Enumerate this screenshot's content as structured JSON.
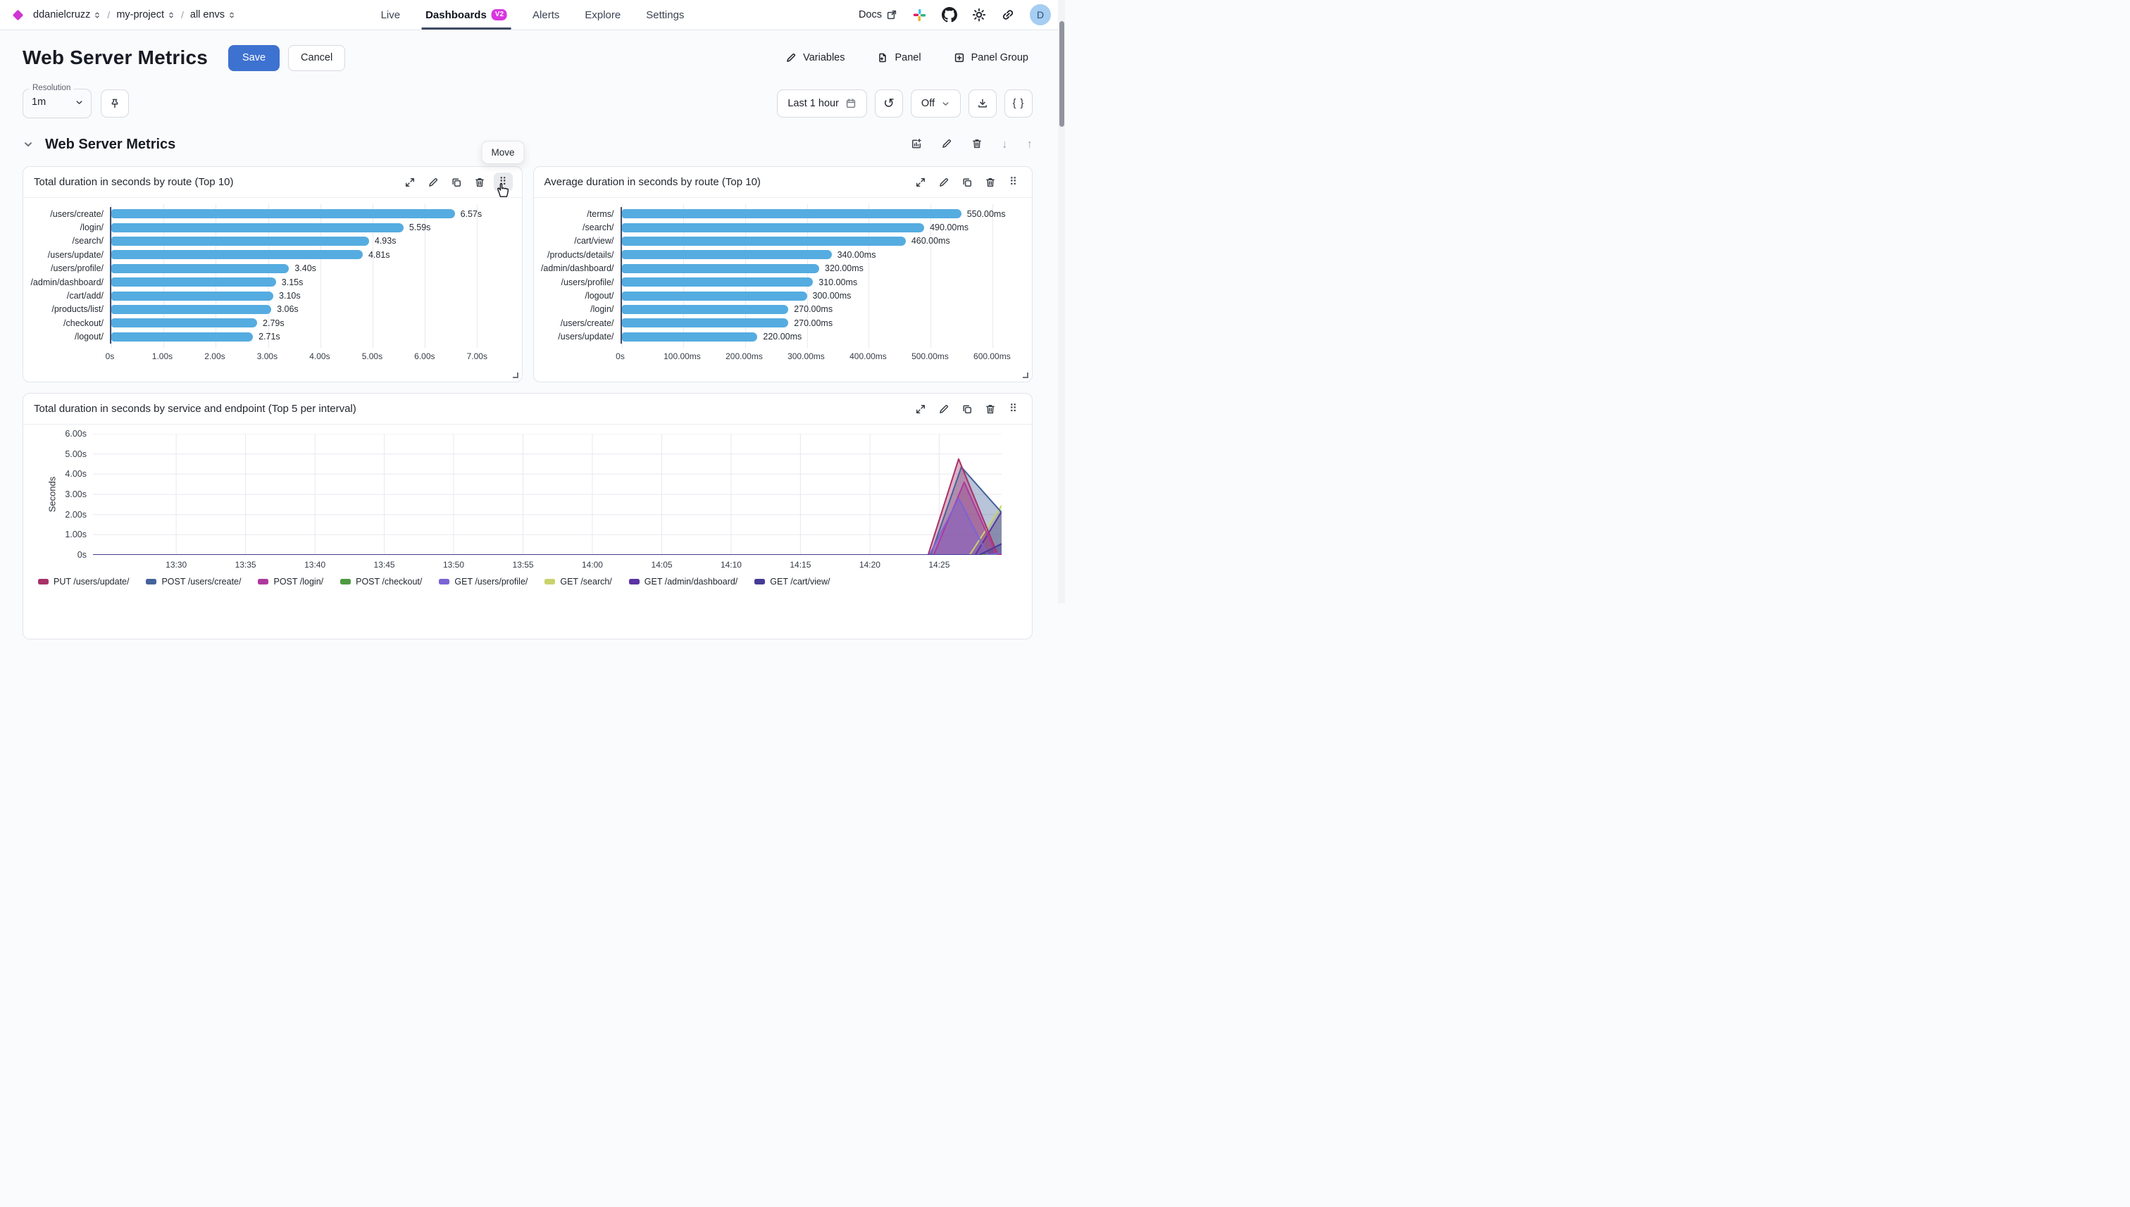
{
  "nav": {
    "logo_color": "#cf35d3",
    "crumbs": [
      "ddanielcruzz",
      "my-project",
      "all envs"
    ],
    "tabs": [
      {
        "label": "Live",
        "active": false
      },
      {
        "label": "Dashboards",
        "badge": "V2",
        "active": true
      },
      {
        "label": "Alerts",
        "active": false
      },
      {
        "label": "Explore",
        "active": false
      },
      {
        "label": "Settings",
        "active": false
      }
    ],
    "badge_color": "#d935e0",
    "docs_label": "Docs",
    "avatar_initial": "D"
  },
  "header": {
    "title": "Web Server Metrics",
    "save_label": "Save",
    "cancel_label": "Cancel",
    "actions": [
      {
        "label": "Variables",
        "icon": "edit-icon"
      },
      {
        "label": "Panel",
        "icon": "file-plus-icon"
      },
      {
        "label": "Panel Group",
        "icon": "square-plus-icon"
      }
    ]
  },
  "controls": {
    "resolution_label": "Resolution",
    "resolution_value": "1m",
    "time_range": "Last 1 hour",
    "autorefresh": "Off",
    "braces_label": "{ }"
  },
  "section": {
    "title": "Web Server Metrics",
    "move_tooltip": "Move"
  },
  "icon_glyphs": {
    "drag-handle": "⠿",
    "refresh": "↺",
    "arrow-down": "↓",
    "arrow-up": "↑"
  },
  "colors": {
    "accent_blue": "#3e72d0",
    "bar_blue": "#55ace0",
    "axis_dark": "#434e6b",
    "grid": "#e9e9f1"
  },
  "chart_data": [
    {
      "type": "bar",
      "orientation": "horizontal",
      "title": "Total duration in seconds by route (Top 10)",
      "categories": [
        "/users/create/",
        "/login/",
        "/search/",
        "/users/update/",
        "/users/profile/",
        "/admin/dashboard/",
        "/cart/add/",
        "/products/list/",
        "/checkout/",
        "/logout/"
      ],
      "values": [
        6.57,
        5.59,
        4.93,
        4.81,
        3.4,
        3.15,
        3.1,
        3.06,
        2.79,
        2.71
      ],
      "value_labels": [
        "6.57s",
        "5.59s",
        "4.93s",
        "4.81s",
        "3.40s",
        "3.15s",
        "3.10s",
        "3.06s",
        "2.79s",
        "2.71s"
      ],
      "axis_max": 7.62,
      "ticks": {
        "values": [
          0,
          1,
          2,
          3,
          4,
          5,
          6,
          7
        ],
        "labels": [
          "0s",
          "1.00s",
          "2.00s",
          "3.00s",
          "4.00s",
          "5.00s",
          "6.00s",
          "7.00s"
        ]
      },
      "bar_color": "#55ace0",
      "grid": true
    },
    {
      "type": "bar",
      "orientation": "horizontal",
      "title": "Average duration in seconds by route (Top 10)",
      "categories": [
        "/terms/",
        "/search/",
        "/cart/view/",
        "/products/details/",
        "/admin/dashboard/",
        "/users/profile/",
        "/logout/",
        "/login/",
        "/users/create/",
        "/users/update/"
      ],
      "values": [
        550,
        490,
        460,
        340,
        320,
        310,
        300,
        270,
        270,
        220
      ],
      "value_labels": [
        "550.00ms",
        "490.00ms",
        "460.00ms",
        "340.00ms",
        "320.00ms",
        "310.00ms",
        "300.00ms",
        "270.00ms",
        "270.00ms",
        "220.00ms"
      ],
      "axis_max": 645,
      "ticks": {
        "values": [
          0,
          100,
          200,
          300,
          400,
          500,
          600
        ],
        "labels": [
          "0s",
          "100.00ms",
          "200.00ms",
          "300.00ms",
          "400.00ms",
          "500.00ms",
          "600.00ms"
        ]
      },
      "bar_color": "#55ace0",
      "grid": true
    },
    {
      "type": "area",
      "title": "Total duration in seconds by service and endpoint (Top 5 per interval)",
      "ylabel": "Seconds",
      "ylim": [
        0,
        6
      ],
      "yticks": {
        "values": [
          0,
          1,
          2,
          3,
          4,
          5,
          6
        ],
        "labels": [
          "0s",
          "1.00s",
          "2.00s",
          "3.00s",
          "4.00s",
          "5.00s",
          "6.00s"
        ]
      },
      "x_domain_minutes": [
        -6,
        59.5
      ],
      "xticks": {
        "minutes": [
          0,
          5,
          10,
          15,
          20,
          25,
          30,
          35,
          40,
          45,
          50,
          55
        ],
        "labels": [
          "13:30",
          "13:35",
          "13:40",
          "13:45",
          "13:50",
          "13:55",
          "14:00",
          "14:05",
          "14:10",
          "14:15",
          "14:20",
          "14:25"
        ]
      },
      "legend_position": "bottom",
      "grid": true,
      "series": [
        {
          "name": "PUT /users/update/",
          "color": "#a83268",
          "points": [
            [
              -6,
              0
            ],
            [
              54.2,
              0
            ],
            [
              56.4,
              4.75
            ],
            [
              59.2,
              0.05
            ],
            [
              59.5,
              0
            ]
          ]
        },
        {
          "name": "POST /users/create/",
          "color": "#44639c",
          "points": [
            [
              -6,
              0
            ],
            [
              54.4,
              0
            ],
            [
              56.6,
              4.35
            ],
            [
              59.5,
              2.1
            ]
          ]
        },
        {
          "name": "POST /login/",
          "color": "#ad3a9e",
          "points": [
            [
              -6,
              0
            ],
            [
              54.6,
              0
            ],
            [
              56.8,
              3.6
            ],
            [
              59.1,
              0.05
            ],
            [
              59.5,
              0
            ]
          ]
        },
        {
          "name": "POST /checkout/",
          "color": "#4e9b41",
          "points": [
            [
              -6,
              0
            ],
            [
              59.5,
              0
            ]
          ]
        },
        {
          "name": "GET /users/profile/",
          "color": "#7a64d4",
          "points": [
            [
              -6,
              0
            ],
            [
              54.3,
              0
            ],
            [
              56.4,
              2.8
            ],
            [
              58.5,
              0
            ],
            [
              59.5,
              0.1
            ]
          ]
        },
        {
          "name": "GET /search/",
          "color": "#c9d36c",
          "points": [
            [
              -6,
              0
            ],
            [
              57.2,
              0
            ],
            [
              59.5,
              2.45
            ]
          ]
        },
        {
          "name": "GET /admin/dashboard/",
          "color": "#5b33a4",
          "points": [
            [
              -6,
              0
            ],
            [
              57.6,
              0
            ],
            [
              59.5,
              2.15
            ]
          ]
        },
        {
          "name": "GET /cart/view/",
          "color": "#453b97",
          "points": [
            [
              -6,
              0
            ],
            [
              57.9,
              0
            ],
            [
              59.5,
              0.55
            ]
          ]
        }
      ],
      "draw_order": [
        3,
        5,
        6,
        2,
        1,
        0,
        4,
        7
      ]
    }
  ]
}
